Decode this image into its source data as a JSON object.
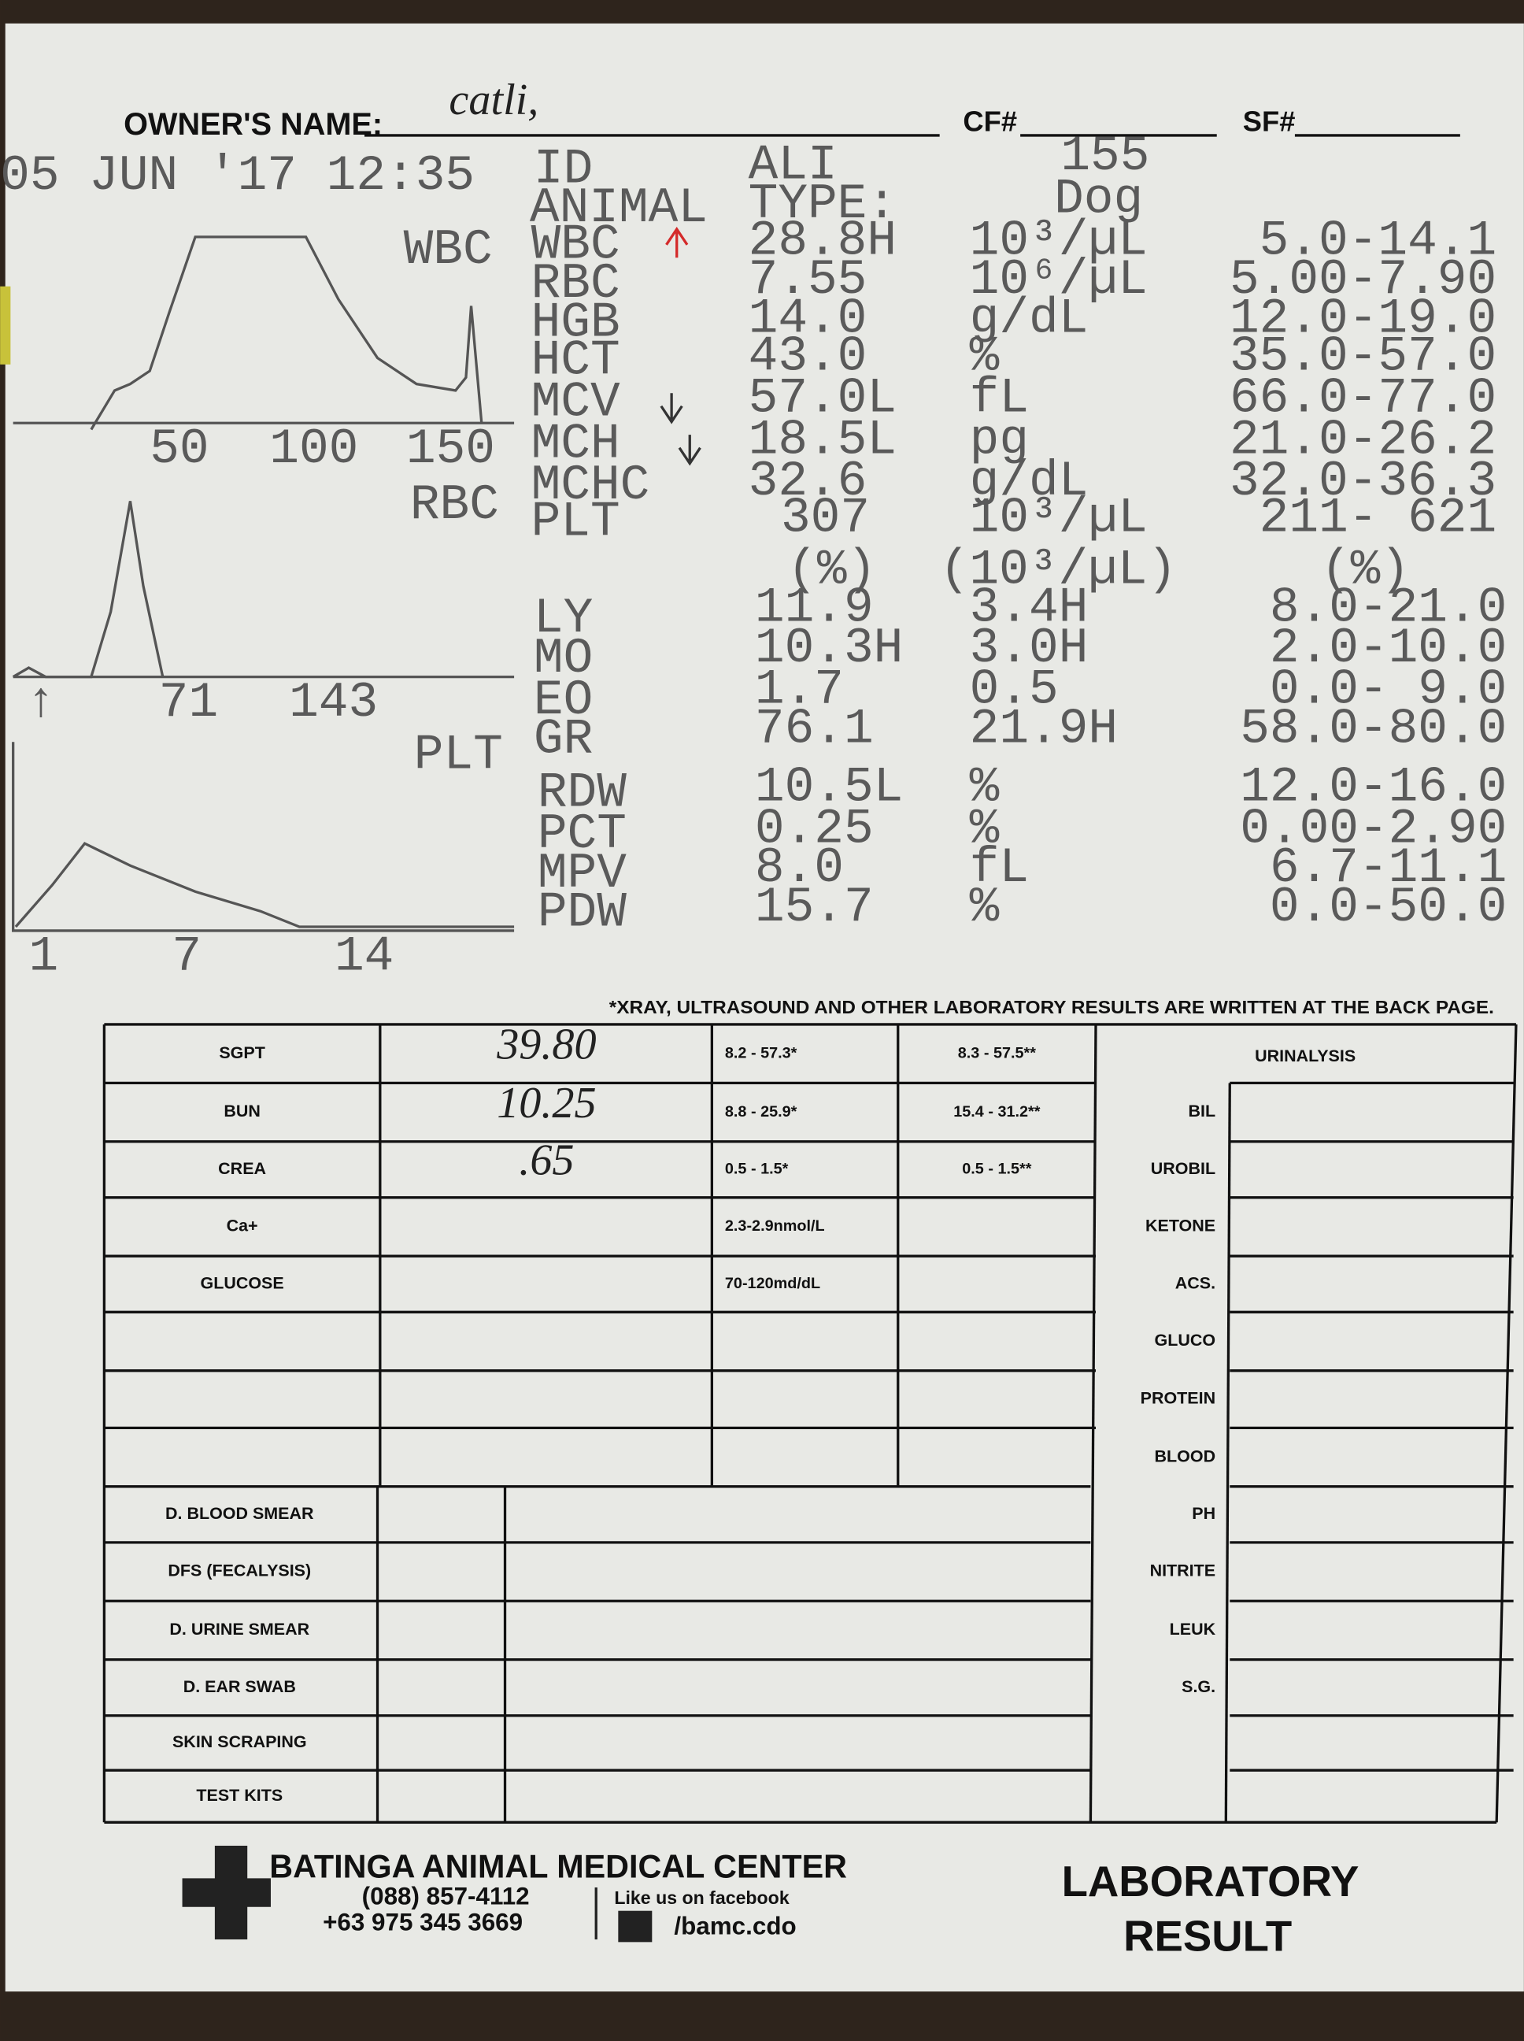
{
  "header": {
    "owner_label": "OWNER'S NAME:",
    "owner": "catli,",
    "cf_label": "CF#",
    "sf_label": "SF#"
  },
  "printout": {
    "datetime": "05 JUN '17 12:35",
    "id_label": "ID",
    "id": "ALI",
    "id_number": "155",
    "animal_label": "ANIMAL",
    "type_label": "TYPE:",
    "animal": "Dog",
    "rows": [
      {
        "name": "WBC",
        "value": "28.8H",
        "unit": "10³/µL",
        "range": "5.0-14.1"
      },
      {
        "name": "RBC",
        "value": "7.55",
        "unit": "10⁶/µL",
        "range": "5.00-7.90"
      },
      {
        "name": "HGB",
        "value": "14.0",
        "unit": "g/dL",
        "range": "12.0-19.0"
      },
      {
        "name": "HCT",
        "value": "43.0",
        "unit": "%",
        "range": "35.0-57.0"
      },
      {
        "name": "MCV",
        "value": "57.0L",
        "unit": "fL",
        "range": "66.0-77.0"
      },
      {
        "name": "MCH",
        "value": "18.5L",
        "unit": "pg",
        "range": "21.0-26.2"
      },
      {
        "name": "MCHC",
        "value": "32.6",
        "unit": "g/dL",
        "range": "32.0-36.3"
      },
      {
        "name": "PLT",
        "value": "307",
        "unit": "10³/µL",
        "range": "211- 621"
      }
    ],
    "diff_headers": [
      "(%)",
      "(10³/µL)",
      "(%)"
    ],
    "diff_rows": [
      {
        "name": "LY",
        "percent": "11.9",
        "absolute": "3.4H",
        "range": "8.0-21.0"
      },
      {
        "name": "MO",
        "percent": "10.3H",
        "absolute": "3.0H",
        "range": "2.0-10.0"
      },
      {
        "name": "EO",
        "percent": "1.7",
        "absolute": "0.5",
        "range": "0.0- 9.0"
      },
      {
        "name": "GR",
        "percent": "76.1",
        "absolute": "21.9H",
        "range": "58.0-80.0"
      }
    ],
    "plt_rows": [
      {
        "name": "RDW",
        "value": "10.5L",
        "unit": "%",
        "range": "12.0-16.0"
      },
      {
        "name": "PCT",
        "value": "0.25",
        "unit": "%",
        "range": "0.00-2.90"
      },
      {
        "name": "MPV",
        "value": "8.0",
        "unit": "fL",
        "range": "6.7-11.1"
      },
      {
        "name": "PDW",
        "value": "15.7",
        "unit": "%",
        "range": "0.0-50.0"
      }
    ]
  },
  "histograms": [
    {
      "label": "WBC",
      "ticks": [
        "50",
        "100",
        "150"
      ]
    },
    {
      "label": "RBC",
      "ticks": [
        "↑",
        "71",
        "143"
      ]
    },
    {
      "label": "PLT",
      "ticks": [
        "1",
        "7",
        "14"
      ]
    }
  ],
  "note": "*XRAY, ULTRASOUND AND OTHER LABORATORY RESULTS ARE WRITTEN AT THE BACK PAGE.",
  "chemistry": [
    {
      "test": "SGPT",
      "result": "39.80",
      "ref_1": "8.2 - 57.3*",
      "ref_2": "8.3 - 57.5**"
    },
    {
      "test": "BUN",
      "result": "10.25",
      "ref_1": "8.8 - 25.9*",
      "ref_2": "15.4 - 31.2**"
    },
    {
      "test": "CREA",
      "result": ".65",
      "ref_1": "0.5 - 1.5*",
      "ref_2": "0.5 - 1.5**"
    },
    {
      "test": "Ca+",
      "ref_1": "2.3-2.9nmol/L"
    },
    {
      "test": "GLUCOSE",
      "ref_1": "70-120md/dL"
    }
  ],
  "urinalysis": {
    "title": "URINALYSIS",
    "items": [
      "BIL",
      "UROBIL",
      "KETONE",
      "ACS.",
      "GLUCO",
      "PROTEIN",
      "BLOOD",
      "PH",
      "NITRITE",
      "LEUK",
      "S.G."
    ]
  },
  "tests": [
    "D. BLOOD SMEAR",
    "DFS (FECALYSIS)",
    "D. URINE SMEAR",
    "D. EAR SWAB",
    "SKIN SCRAPING",
    "TEST KITS"
  ],
  "footer": {
    "clinic": "BATINGA ANIMAL MEDICAL CENTER",
    "phone_1": "(088) 857-4112",
    "phone_2": "+63 975 345 3669",
    "facebook_label": "Like us on facebook",
    "facebook": "/bamc.cdo",
    "title_1": "LABORATORY",
    "title_2": "RESULT"
  }
}
